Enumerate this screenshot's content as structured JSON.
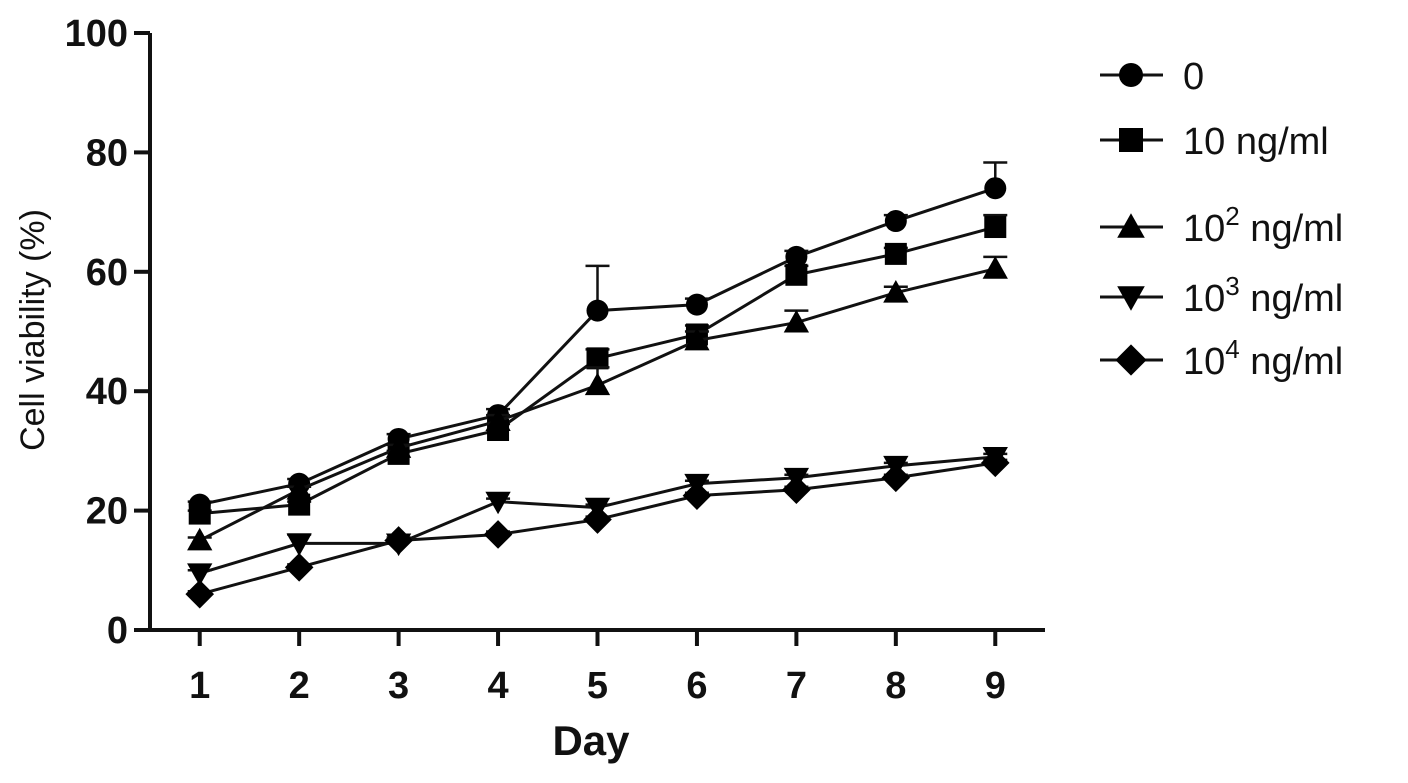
{
  "chart_data": {
    "type": "line",
    "xlabel": "Day",
    "ylabel": "Cell viability (%)",
    "x": [
      1,
      2,
      3,
      4,
      5,
      6,
      7,
      8,
      9
    ],
    "xlim": [
      0.5,
      9.5
    ],
    "ylim": [
      0,
      100
    ],
    "yticks": [
      0,
      20,
      40,
      60,
      80,
      100
    ],
    "grid": false,
    "legend_position": "right",
    "series": [
      {
        "name": "0",
        "marker": "circle",
        "values": [
          21,
          24.5,
          32,
          36,
          53.5,
          54.5,
          62.5,
          68.5,
          74
        ],
        "errors": [
          0.5,
          0.8,
          0.8,
          1,
          7.5,
          1,
          1,
          1,
          4.3
        ]
      },
      {
        "name": "10 ng/ml",
        "marker": "square",
        "values": [
          19.5,
          21,
          29.5,
          33.5,
          45.5,
          49.5,
          59.5,
          63,
          67.5
        ],
        "errors": [
          0.5,
          0.5,
          0.5,
          1,
          1.5,
          1.5,
          1.5,
          1,
          2
        ]
      },
      {
        "name": "10^2 ng/ml",
        "name_base": "10",
        "name_sup": "2",
        "name_suffix": " ng/ml",
        "marker": "triangle-up",
        "values": [
          15,
          23.5,
          30.5,
          35,
          41,
          48.5,
          51.5,
          56.5,
          60.5
        ],
        "errors": [
          0.5,
          0.5,
          0.5,
          1,
          3,
          1.5,
          2,
          1,
          2
        ]
      },
      {
        "name": "10^3 ng/ml",
        "name_base": "10",
        "name_sup": "3",
        "name_suffix": " ng/ml",
        "marker": "triangle-down",
        "values": [
          9.5,
          14.5,
          14.5,
          21.5,
          20.5,
          24.5,
          25.5,
          27.5,
          29
        ],
        "errors": [
          0.5,
          1.5,
          0.5,
          0.5,
          0.5,
          0.5,
          0.5,
          0.5,
          0.5
        ]
      },
      {
        "name": "10^4 ng/ml",
        "name_base": "10",
        "name_sup": "4",
        "name_suffix": " ng/ml",
        "marker": "diamond",
        "values": [
          6,
          10.5,
          15,
          16,
          18.5,
          22.5,
          23.5,
          25.5,
          28
        ],
        "errors": [
          0.5,
          0.5,
          0.5,
          0.5,
          0.5,
          0.5,
          0.5,
          0.5,
          0.5
        ]
      }
    ]
  }
}
